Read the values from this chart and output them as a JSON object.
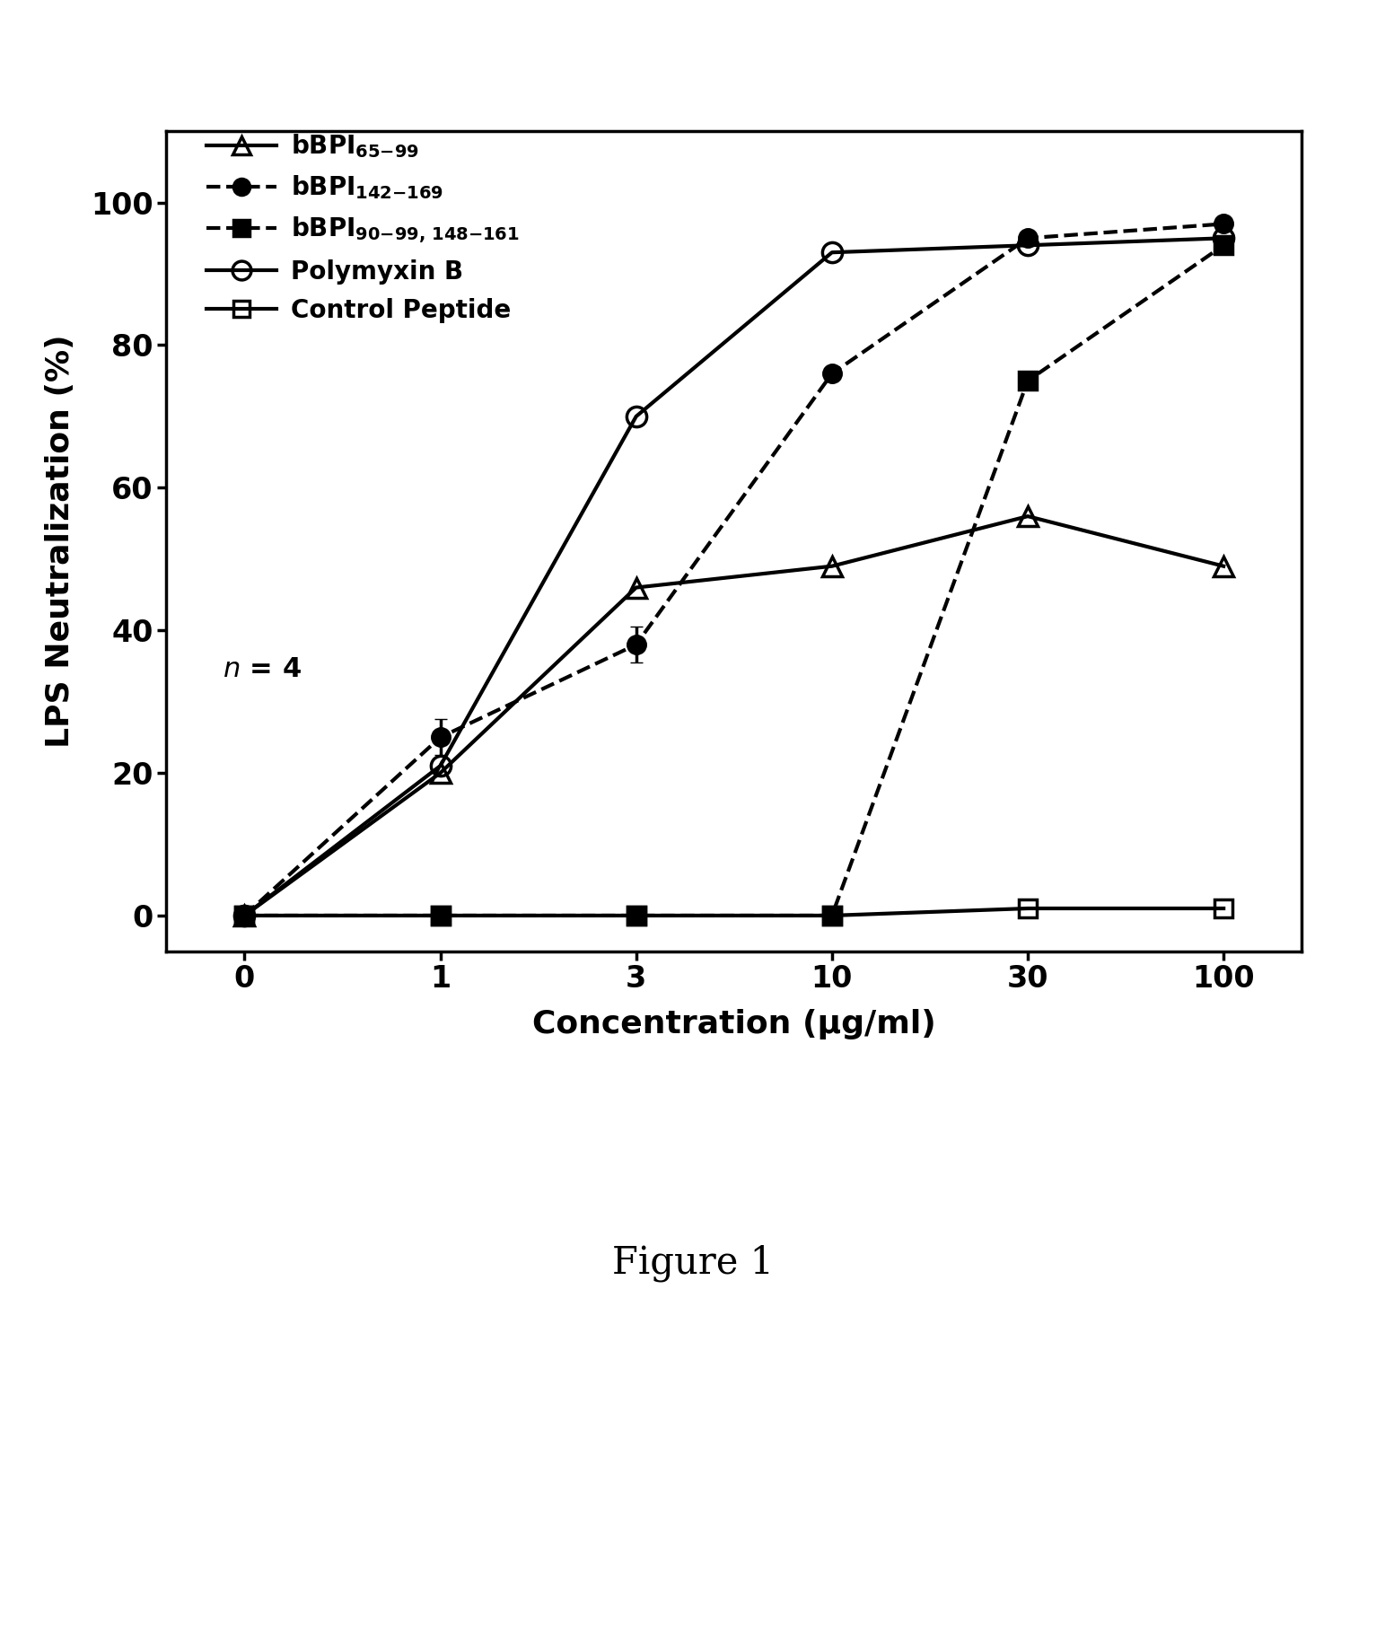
{
  "title": "Figure 1",
  "xlabel": "Concentration (μg/ml)",
  "ylabel": "LPS Neutralization (%)",
  "n_label": "n = 4",
  "x_ticks": [
    0,
    1,
    3,
    10,
    30,
    100
  ],
  "x_tick_labels": [
    "0",
    "1",
    "3",
    "10",
    "30",
    "100"
  ],
  "ylim": [
    -5,
    110
  ],
  "yticks": [
    0,
    20,
    40,
    60,
    80,
    100
  ],
  "series": {
    "bBPI_65_99": {
      "y": [
        0,
        20,
        46,
        49,
        56,
        49
      ],
      "linestyle": "solid",
      "marker": "^",
      "markersize": 16,
      "linewidth": 3.0,
      "color": "black",
      "fillstyle": "none",
      "zorder": 3
    },
    "bBPI_142_169": {
      "y": [
        0,
        25,
        38,
        76,
        95,
        97
      ],
      "linestyle": "dashed",
      "marker": "o",
      "markersize": 14,
      "linewidth": 3.0,
      "color": "black",
      "fillstyle": "full",
      "zorder": 4
    },
    "bBPI_90_99_148_161": {
      "y": [
        0,
        0,
        0,
        0,
        75,
        94
      ],
      "linestyle": "dashed",
      "marker": "s",
      "markersize": 14,
      "linewidth": 3.0,
      "color": "black",
      "fillstyle": "full",
      "zorder": 3
    },
    "polymyxin_b": {
      "y": [
        0,
        21,
        70,
        93,
        94,
        95
      ],
      "linestyle": "solid",
      "marker": "o",
      "markersize": 16,
      "linewidth": 3.0,
      "color": "black",
      "fillstyle": "none",
      "zorder": 5
    },
    "control_peptide": {
      "y": [
        0,
        0,
        0,
        0,
        1,
        1
      ],
      "linestyle": "solid",
      "marker": "s",
      "markersize": 14,
      "linewidth": 3.0,
      "color": "black",
      "fillstyle": "none",
      "zorder": 2
    }
  },
  "figure_label": "Figure 1",
  "background_color": "#ffffff",
  "linewidth_axes": 2.5
}
